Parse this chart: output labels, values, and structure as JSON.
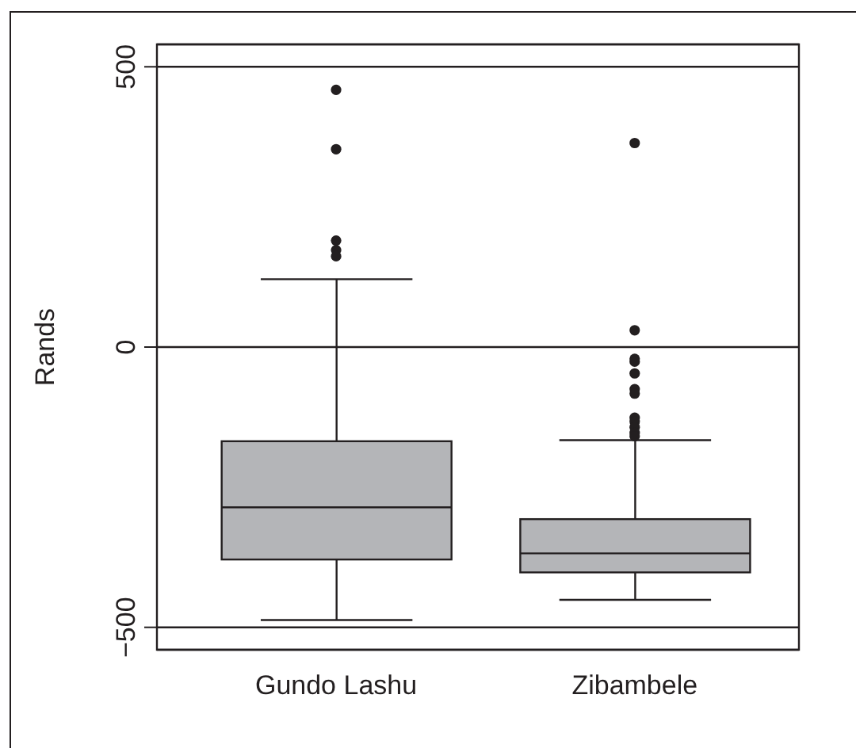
{
  "chart_data": {
    "type": "box",
    "ylabel": "Rands",
    "categories": [
      "Gundo Lashu",
      "Zibambele"
    ],
    "color": "#b4b5b8",
    "boxes": [
      {
        "low": -487,
        "q1": -379,
        "median": -286,
        "q3": -168,
        "high": 121,
        "outliers": [
          459,
          353,
          190,
          173,
          162
        ]
      },
      {
        "low": -451,
        "q1": -402,
        "median": -368,
        "q3": -307,
        "high": -166,
        "outliers": [
          364,
          30,
          -21,
          -26,
          -47,
          -75,
          -83,
          -126,
          -133,
          -143,
          -153,
          -159
        ]
      }
    ],
    "ylim": [
      -540,
      540
    ],
    "yticks": [
      -500,
      0,
      500
    ],
    "grid": "y"
  }
}
